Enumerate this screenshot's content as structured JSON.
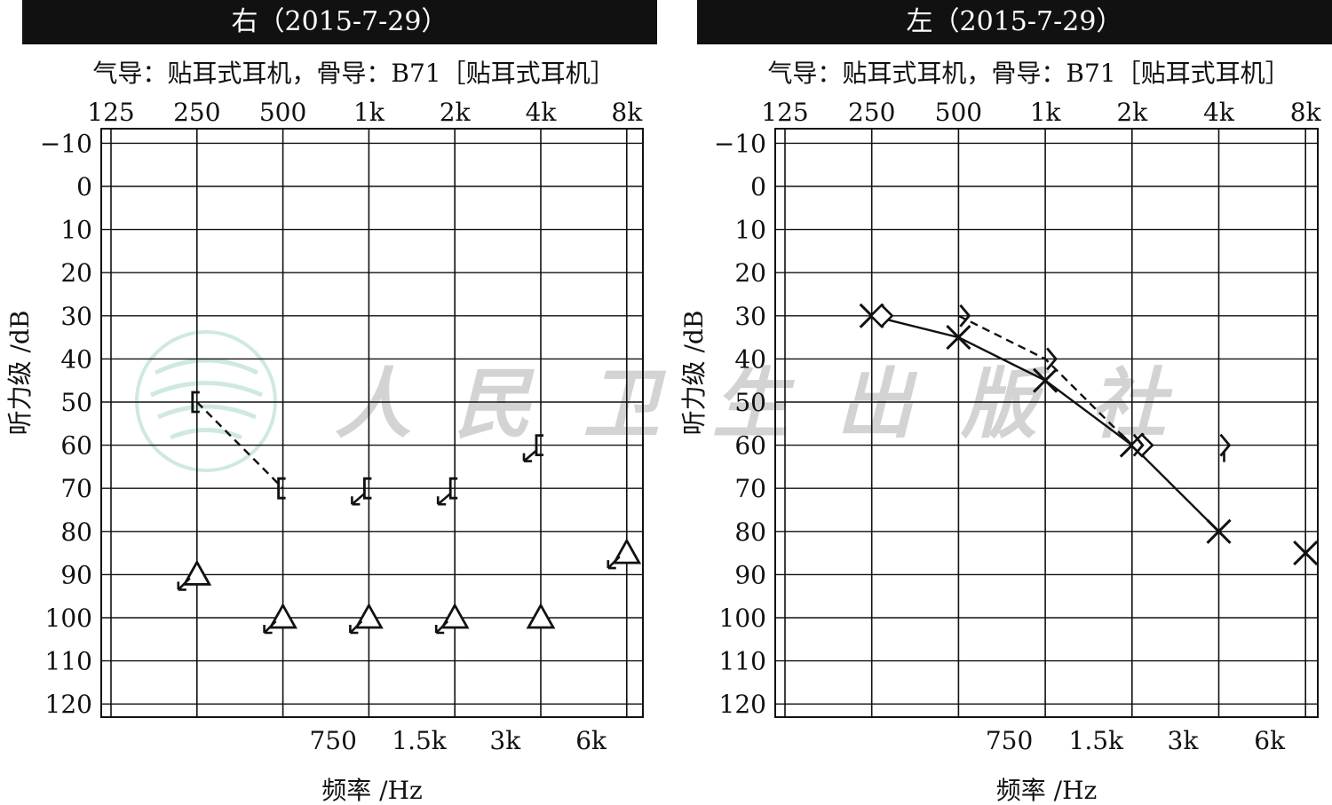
{
  "watermark": {
    "text": "人民卫生出版社",
    "chars": [
      "人",
      "民",
      "卫",
      "生",
      "出",
      "版",
      "社"
    ]
  },
  "colors": {
    "title_bar": "#111111",
    "ink": "#111111",
    "watermark": "#d3d3d3",
    "watermark_logo": "#cfe9e2"
  },
  "chart_data": [
    {
      "type": "scatter",
      "title": "右（2015-7-29）",
      "subtitle": "气导：贴耳式耳机，骨导：B71［贴耳式耳机］",
      "xlabel": "频率 /Hz",
      "ylabel": "听力级 /dB",
      "x_scale": "log2",
      "x_top_ticks": [
        {
          "value": 125,
          "label": "125"
        },
        {
          "value": 250,
          "label": "250"
        },
        {
          "value": 500,
          "label": "500"
        },
        {
          "value": 1000,
          "label": "1k"
        },
        {
          "value": 2000,
          "label": "2k"
        },
        {
          "value": 4000,
          "label": "4k"
        },
        {
          "value": 8000,
          "label": "8k"
        }
      ],
      "x_bottom_ticks": [
        {
          "value": 750,
          "label": "750"
        },
        {
          "value": 1500,
          "label": "1.5k"
        },
        {
          "value": 3000,
          "label": "3k"
        },
        {
          "value": 6000,
          "label": "6k"
        }
      ],
      "y_ticks": [
        {
          "value": -10,
          "label": "−10"
        },
        {
          "value": 0,
          "label": "0"
        },
        {
          "value": 10,
          "label": "10"
        },
        {
          "value": 20,
          "label": "20"
        },
        {
          "value": 30,
          "label": "30"
        },
        {
          "value": 40,
          "label": "40"
        },
        {
          "value": 50,
          "label": "50"
        },
        {
          "value": 60,
          "label": "60"
        },
        {
          "value": 70,
          "label": "70"
        },
        {
          "value": 80,
          "label": "80"
        },
        {
          "value": 90,
          "label": "90"
        },
        {
          "value": 100,
          "label": "100"
        },
        {
          "value": 110,
          "label": "110"
        },
        {
          "value": 120,
          "label": "120"
        }
      ],
      "ylim": [
        -10,
        120
      ],
      "y_inverted": true,
      "grid": true,
      "series": [
        {
          "points": [
            {
              "x": 250,
              "y": 50,
              "symbol": "bone-bracket-right",
              "no_response": false
            },
            {
              "x": 500,
              "y": 70,
              "symbol": "bone-bracket-right",
              "no_response": false
            },
            {
              "x": 1000,
              "y": 70,
              "symbol": "bone-bracket-right",
              "no_response": true
            },
            {
              "x": 2000,
              "y": 70,
              "symbol": "bone-bracket-right",
              "no_response": true
            },
            {
              "x": 4000,
              "y": 60,
              "symbol": "bone-bracket-right",
              "no_response": true
            }
          ],
          "line_style": "dashed",
          "connected_segment": [
            0,
            1
          ]
        },
        {
          "points": [
            {
              "x": 250,
              "y": 90,
              "symbol": "triangle",
              "no_response": true
            },
            {
              "x": 500,
              "y": 100,
              "symbol": "triangle",
              "no_response": true
            },
            {
              "x": 1000,
              "y": 100,
              "symbol": "triangle",
              "no_response": true
            },
            {
              "x": 2000,
              "y": 100,
              "symbol": "triangle",
              "no_response": true
            },
            {
              "x": 4000,
              "y": 100,
              "symbol": "triangle",
              "no_response": false
            },
            {
              "x": 8000,
              "y": 85,
              "symbol": "triangle",
              "no_response": true
            }
          ],
          "line_style": "none"
        }
      ]
    },
    {
      "type": "scatter",
      "title": "左（2015-7-29）",
      "subtitle": "气导：贴耳式耳机，骨导：B71［贴耳式耳机］",
      "xlabel": "频率 /Hz",
      "ylabel": "听力级 /dB",
      "x_scale": "log2",
      "x_top_ticks": [
        {
          "value": 125,
          "label": "125"
        },
        {
          "value": 250,
          "label": "250"
        },
        {
          "value": 500,
          "label": "500"
        },
        {
          "value": 1000,
          "label": "1k"
        },
        {
          "value": 2000,
          "label": "2k"
        },
        {
          "value": 4000,
          "label": "4k"
        },
        {
          "value": 8000,
          "label": "8k"
        }
      ],
      "x_bottom_ticks": [
        {
          "value": 750,
          "label": "750"
        },
        {
          "value": 1500,
          "label": "1.5k"
        },
        {
          "value": 3000,
          "label": "3k"
        },
        {
          "value": 6000,
          "label": "6k"
        }
      ],
      "y_ticks": [
        {
          "value": -10,
          "label": "−10"
        },
        {
          "value": 0,
          "label": "0"
        },
        {
          "value": 10,
          "label": "10"
        },
        {
          "value": 20,
          "label": "20"
        },
        {
          "value": 30,
          "label": "30"
        },
        {
          "value": 40,
          "label": "40"
        },
        {
          "value": 50,
          "label": "50"
        },
        {
          "value": 60,
          "label": "60"
        },
        {
          "value": 70,
          "label": "70"
        },
        {
          "value": 80,
          "label": "80"
        },
        {
          "value": 90,
          "label": "90"
        },
        {
          "value": 100,
          "label": "100"
        },
        {
          "value": 110,
          "label": "110"
        },
        {
          "value": 120,
          "label": "120"
        }
      ],
      "ylim": [
        -10,
        120
      ],
      "y_inverted": true,
      "grid": true,
      "series": [
        {
          "points": [
            {
              "x": 250,
              "y": 30,
              "symbol": "x"
            },
            {
              "x": 500,
              "y": 35,
              "symbol": "x"
            },
            {
              "x": 1000,
              "y": 45,
              "symbol": "x"
            },
            {
              "x": 2000,
              "y": 60,
              "symbol": "x"
            },
            {
              "x": 4000,
              "y": 80,
              "symbol": "x"
            },
            {
              "x": 8000,
              "y": 85,
              "symbol": "x"
            }
          ],
          "line_style": "solid",
          "connected_through": 4
        },
        {
          "points": [
            {
              "x": 250,
              "y": 30,
              "symbol": "diamond"
            },
            {
              "x": 2000,
              "y": 60,
              "symbol": "diamond"
            }
          ],
          "line_style": "solid",
          "connected": false
        },
        {
          "points": [
            {
              "x": 500,
              "y": 30,
              "symbol": "bone-angle-left"
            },
            {
              "x": 1000,
              "y": 40,
              "symbol": "bone-angle-left"
            },
            {
              "x": 2000,
              "y": 60,
              "symbol": "bone-angle-left"
            },
            {
              "x": 4000,
              "y": 60,
              "symbol": "bone-angle-left",
              "no_response": true
            }
          ],
          "line_style": "dashed",
          "connected_through": 2
        }
      ]
    }
  ]
}
